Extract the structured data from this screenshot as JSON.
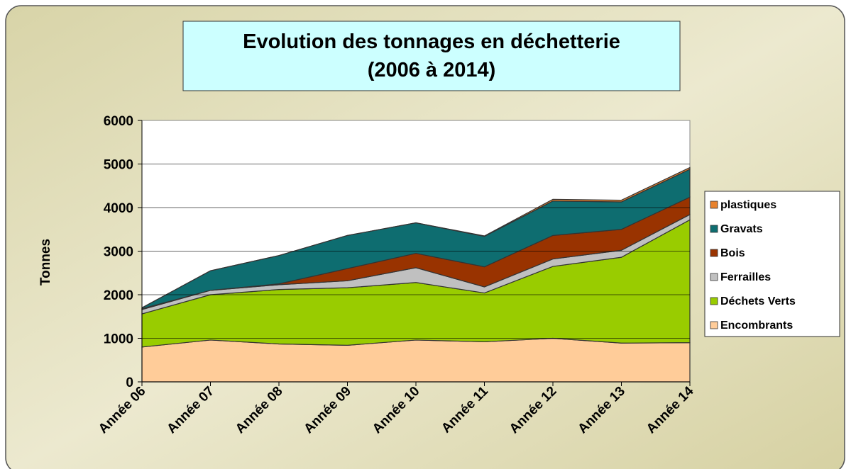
{
  "chart_data": {
    "type": "stacked-area",
    "title": "Evolution des tonnages en déchetterie",
    "subtitle": "(2006 à 2014)",
    "y_label": "Tonnes",
    "categories": [
      "Année 06",
      "Année 07",
      "Année 08",
      "Année 09",
      "Année 10",
      "Année 11",
      "Année 12",
      "Année 13",
      "Année 14"
    ],
    "series": [
      {
        "name": "Encombrants",
        "color": "#ffcc99",
        "values": [
          800,
          960,
          870,
          840,
          960,
          920,
          1000,
          890,
          900
        ]
      },
      {
        "name": "Déchets Verts",
        "color": "#99cc00",
        "values": [
          760,
          1040,
          1250,
          1320,
          1320,
          1120,
          1650,
          1970,
          2820
        ]
      },
      {
        "name": "Ferrailles",
        "color": "#c0c0c0",
        "values": [
          100,
          100,
          110,
          160,
          340,
          140,
          170,
          160,
          120
        ]
      },
      {
        "name": "Bois",
        "color": "#993300",
        "values": [
          20,
          0,
          20,
          280,
          330,
          460,
          540,
          480,
          400
        ]
      },
      {
        "name": "Gravats",
        "color": "#0e6d70",
        "values": [
          20,
          450,
          650,
          760,
          700,
          700,
          790,
          630,
          640
        ]
      },
      {
        "name": "plastiques",
        "color": "#e8822e",
        "values": [
          0,
          0,
          0,
          0,
          0,
          10,
          40,
          40,
          40
        ]
      }
    ],
    "ylim": [
      0,
      6000
    ],
    "yticks": [
      0,
      1000,
      2000,
      3000,
      4000,
      5000,
      6000
    ],
    "grid": true,
    "legend": "right"
  }
}
